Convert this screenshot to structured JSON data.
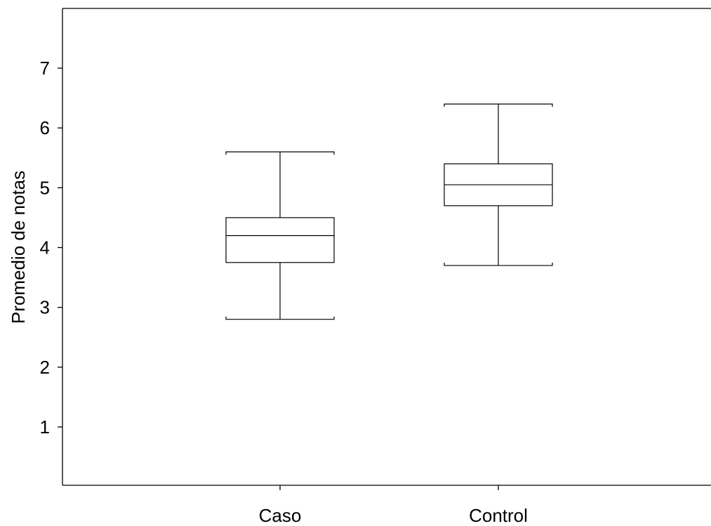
{
  "chart_data": {
    "type": "boxplot",
    "title": "",
    "xlabel": "",
    "ylabel": "Promedio de notas",
    "ylim": [
      0,
      8
    ],
    "yticks": [
      1,
      2,
      3,
      4,
      5,
      6,
      7
    ],
    "grid": false,
    "categories": [
      "Caso",
      "Control"
    ],
    "boxes": [
      {
        "category": "Caso",
        "whisker_low": 2.8,
        "q1": 3.75,
        "median": 4.2,
        "q3": 4.5,
        "whisker_high": 5.6
      },
      {
        "category": "Control",
        "whisker_low": 3.7,
        "q1": 4.7,
        "median": 5.05,
        "q3": 5.4,
        "whisker_high": 6.4
      }
    ]
  }
}
